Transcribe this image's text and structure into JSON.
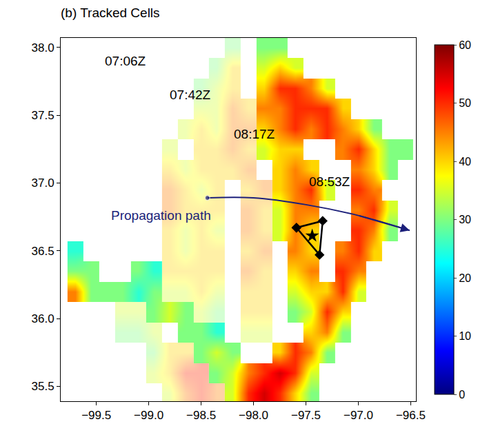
{
  "chart_data": {
    "type": "heatmap",
    "title": "(b) Tracked Cells",
    "xlim": [
      -99.84,
      -96.45
    ],
    "ylim": [
      35.39,
      38.07
    ],
    "xticks": [
      {
        "value": -99.5,
        "label": "−99.5"
      },
      {
        "value": -99,
        "label": "−99.0"
      },
      {
        "value": -98.5,
        "label": "−98.5"
      },
      {
        "value": -98,
        "label": "−98.0"
      },
      {
        "value": -97.5,
        "label": "−97.5"
      },
      {
        "value": -97,
        "label": "−97.0"
      },
      {
        "value": -96.5,
        "label": "−96.5"
      }
    ],
    "yticks": [
      35.5,
      {
        "value": 36,
        "label": "36.0"
      },
      36.5,
      {
        "value": 37,
        "label": "37.0"
      },
      37.5,
      {
        "value": 38,
        "label": "38.0"
      }
    ],
    "grid": false,
    "zlim": [
      0,
      60
    ],
    "zticks": [
      0,
      10,
      20,
      30,
      40,
      50,
      60
    ],
    "x": [
      -99.7,
      -99.55,
      -99.4,
      -99.25,
      -99.1,
      -98.95,
      -98.8,
      -98.65,
      -98.5,
      -98.35,
      -98.2,
      -98.05,
      -97.9,
      -97.75,
      -97.6,
      -97.45,
      -97.3,
      -97.15,
      -97.0,
      -96.85,
      -96.7,
      -96.55
    ],
    "y": [
      35.45,
      35.6,
      35.75,
      35.9,
      36.05,
      36.2,
      36.35,
      36.5,
      36.65,
      36.8,
      36.95,
      37.1,
      37.25,
      37.4,
      37.55,
      37.7,
      37.85,
      38.0
    ],
    "z": [
      [
        null,
        null,
        null,
        null,
        null,
        null,
        null,
        null,
        null,
        null,
        35,
        50,
        55,
        50,
        40,
        30,
        null,
        null,
        null,
        null,
        null,
        null
      ],
      [
        null,
        null,
        null,
        null,
        null,
        null,
        null,
        null,
        null,
        30,
        35,
        45,
        50,
        55,
        50,
        35,
        null,
        null,
        null,
        null,
        null,
        null
      ],
      [
        null,
        null,
        null,
        null,
        null,
        null,
        null,
        null,
        30,
        35,
        30,
        null,
        null,
        40,
        50,
        45,
        30,
        null,
        null,
        null,
        null,
        null
      ],
      [
        null,
        null,
        null,
        null,
        null,
        null,
        null,
        30,
        30,
        25,
        null,
        null,
        null,
        null,
        null,
        40,
        45,
        30,
        null,
        null,
        null,
        null
      ],
      [
        null,
        null,
        null,
        null,
        null,
        30,
        35,
        30,
        null,
        null,
        null,
        null,
        null,
        null,
        30,
        35,
        50,
        40,
        null,
        null,
        null,
        null
      ],
      [
        45,
        30,
        30,
        30,
        25,
        30,
        null,
        null,
        null,
        null,
        null,
        null,
        null,
        null,
        35,
        40,
        40,
        50,
        35,
        null,
        null,
        null
      ],
      [
        30,
        30,
        null,
        null,
        30,
        25,
        null,
        null,
        null,
        null,
        null,
        null,
        null,
        null,
        40,
        45,
        null,
        50,
        45,
        null,
        null,
        null
      ],
      [
        25,
        null,
        null,
        null,
        null,
        null,
        null,
        null,
        null,
        null,
        null,
        null,
        null,
        null,
        45,
        40,
        null,
        45,
        50,
        40,
        null,
        null
      ],
      [
        null,
        null,
        null,
        null,
        null,
        null,
        null,
        null,
        null,
        null,
        null,
        null,
        null,
        35,
        45,
        40,
        null,
        null,
        50,
        45,
        30,
        null
      ],
      [
        null,
        null,
        null,
        null,
        null,
        null,
        null,
        null,
        null,
        null,
        null,
        null,
        null,
        35,
        45,
        45,
        null,
        null,
        45,
        50,
        35,
        null
      ],
      [
        null,
        null,
        null,
        null,
        null,
        null,
        null,
        null,
        null,
        null,
        null,
        null,
        null,
        40,
        45,
        50,
        35,
        null,
        50,
        45,
        null,
        null
      ],
      [
        null,
        null,
        null,
        null,
        null,
        null,
        null,
        null,
        null,
        null,
        null,
        null,
        null,
        40,
        45,
        40,
        null,
        null,
        45,
        40,
        30,
        null
      ],
      [
        null,
        null,
        null,
        null,
        null,
        null,
        null,
        null,
        null,
        null,
        null,
        null,
        35,
        40,
        40,
        null,
        null,
        45,
        50,
        40,
        30,
        30
      ],
      [
        null,
        null,
        null,
        null,
        null,
        null,
        null,
        null,
        null,
        null,
        null,
        null,
        40,
        45,
        50,
        45,
        50,
        45,
        40,
        30,
        null,
        null
      ],
      [
        null,
        null,
        null,
        null,
        null,
        null,
        null,
        null,
        null,
        null,
        null,
        null,
        45,
        45,
        50,
        50,
        50,
        40,
        null,
        null,
        null,
        null
      ],
      [
        null,
        null,
        null,
        null,
        null,
        null,
        null,
        null,
        null,
        null,
        null,
        null,
        40,
        50,
        50,
        45,
        35,
        null,
        null,
        null,
        null,
        null
      ],
      [
        null,
        null,
        null,
        null,
        null,
        null,
        null,
        null,
        null,
        null,
        null,
        null,
        35,
        40,
        35,
        null,
        null,
        null,
        null,
        null,
        null,
        null
      ],
      [
        null,
        null,
        null,
        null,
        null,
        null,
        null,
        null,
        null,
        null,
        null,
        null,
        30,
        30,
        null,
        null,
        null,
        null,
        null,
        null,
        null,
        null
      ]
    ],
    "z_earlier": [
      [
        null,
        null,
        null,
        null,
        null,
        null,
        35,
        45,
        50,
        45,
        null,
        null,
        null,
        null,
        null,
        null,
        null,
        null,
        null,
        null,
        null,
        null
      ],
      [
        null,
        null,
        null,
        null,
        null,
        35,
        40,
        50,
        50,
        null,
        null,
        null,
        null,
        null,
        null,
        null,
        null,
        null,
        null,
        null,
        null,
        null
      ],
      [
        null,
        null,
        null,
        null,
        null,
        30,
        40,
        40,
        null,
        null,
        null,
        null,
        null,
        null,
        null,
        null,
        null,
        null,
        null,
        null,
        null,
        null
      ],
      [
        null,
        null,
        null,
        30,
        30,
        35,
        null,
        null,
        null,
        null,
        null,
        35,
        35,
        null,
        null,
        null,
        null,
        null,
        null,
        null,
        null,
        null
      ],
      [
        null,
        null,
        null,
        35,
        35,
        null,
        null,
        null,
        35,
        30,
        null,
        40,
        40,
        null,
        null,
        null,
        null,
        null,
        null,
        null,
        null,
        null
      ],
      [
        null,
        null,
        null,
        null,
        null,
        null,
        35,
        35,
        40,
        35,
        null,
        40,
        40,
        null,
        null,
        null,
        null,
        null,
        null,
        null,
        null,
        null
      ],
      [
        null,
        null,
        null,
        null,
        null,
        null,
        40,
        40,
        40,
        40,
        null,
        45,
        40,
        null,
        null,
        null,
        null,
        null,
        null,
        null,
        null,
        null
      ],
      [
        null,
        null,
        null,
        null,
        null,
        null,
        40,
        35,
        40,
        40,
        null,
        40,
        45,
        null,
        null,
        null,
        null,
        null,
        null,
        null,
        null,
        null
      ],
      [
        null,
        null,
        null,
        null,
        null,
        null,
        40,
        35,
        40,
        35,
        null,
        45,
        40,
        null,
        null,
        null,
        null,
        null,
        null,
        null,
        null,
        null
      ],
      [
        null,
        null,
        null,
        null,
        null,
        null,
        45,
        40,
        40,
        40,
        null,
        45,
        40,
        null,
        null,
        null,
        null,
        null,
        null,
        null,
        null,
        null
      ],
      [
        null,
        null,
        null,
        null,
        null,
        null,
        45,
        40,
        35,
        40,
        null,
        40,
        45,
        null,
        null,
        null,
        null,
        null,
        null,
        null,
        null,
        null
      ],
      [
        null,
        null,
        null,
        null,
        null,
        null,
        40,
        35,
        40,
        40,
        40,
        45,
        null,
        null,
        null,
        null,
        null,
        null,
        null,
        null,
        null,
        null
      ],
      [
        null,
        null,
        null,
        null,
        null,
        null,
        35,
        null,
        40,
        40,
        45,
        40,
        null,
        null,
        null,
        null,
        null,
        null,
        null,
        null,
        null,
        null
      ],
      [
        null,
        null,
        null,
        null,
        null,
        null,
        null,
        35,
        40,
        35,
        45,
        45,
        null,
        null,
        null,
        null,
        null,
        null,
        null,
        null,
        null,
        null
      ],
      [
        null,
        null,
        null,
        null,
        null,
        null,
        null,
        null,
        35,
        35,
        45,
        40,
        null,
        null,
        null,
        null,
        null,
        null,
        null,
        null,
        null,
        null
      ],
      [
        null,
        null,
        null,
        null,
        null,
        null,
        null,
        null,
        30,
        35,
        40,
        null,
        null,
        null,
        null,
        null,
        null,
        null,
        null,
        null,
        null,
        null
      ],
      [
        null,
        null,
        null,
        null,
        null,
        null,
        null,
        null,
        null,
        30,
        40,
        null,
        null,
        null,
        null,
        null,
        null,
        null,
        null,
        null,
        null,
        null
      ],
      [
        null,
        null,
        null,
        null,
        null,
        null,
        null,
        null,
        null,
        null,
        30,
        null,
        null,
        null,
        null,
        null,
        null,
        null,
        null,
        null,
        null,
        null
      ]
    ],
    "annotations": [
      {
        "text": "07:06Z",
        "x": -99.22,
        "y": 37.9
      },
      {
        "text": "07:42Z",
        "x": -98.6,
        "y": 37.65
      },
      {
        "text": "08:17Z",
        "x": -97.99,
        "y": 37.36
      },
      {
        "text": "08:53Z",
        "x": -97.27,
        "y": 37.01
      }
    ],
    "propagation_path": {
      "label": "Propagation path",
      "label_at": {
        "x": -98.88,
        "y": 36.76
      },
      "color": "#1b1f7a",
      "x": [
        -98.44,
        -98.0,
        -97.5,
        -97.0,
        -96.51
      ],
      "y": [
        36.89,
        36.89,
        36.84,
        36.76,
        36.65
      ]
    },
    "tracked_cells": {
      "marker": "diamond",
      "color": "#000000",
      "x": [
        -97.59,
        -97.34,
        -97.37
      ],
      "y": [
        36.67,
        36.72,
        36.47
      ]
    },
    "centroid": {
      "marker": "star",
      "color": "#000000",
      "x": [
        -97.44
      ],
      "y": [
        36.61
      ]
    }
  }
}
